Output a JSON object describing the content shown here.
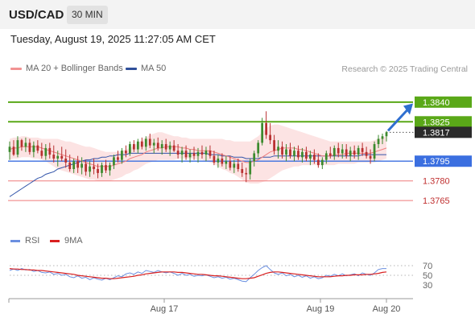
{
  "header": {
    "symbol": "USD/CAD",
    "timeframe": "30 MIN"
  },
  "timestamp": "Tuesday, August 19, 2025 11:27:05 AM CET",
  "legend": {
    "ma20_label": "MA 20 + Bollinger Bands",
    "ma50_label": "MA 50"
  },
  "credit": "Research © 2025 Trading Central",
  "rsi_legend": {
    "rsi_label": "RSI",
    "ma9_label": "9MA"
  },
  "colors": {
    "bull": "#3c8a2e",
    "bear": "#b83030",
    "ma20": "#ef7f7f",
    "ma50": "#3355aa",
    "band": "#fbdada",
    "resistance": "#5aa818",
    "support": "#3b6fe0",
    "support_low": "#ef7a7a",
    "rsi": "#6b8fe0",
    "rsi_ma": "#d92020",
    "arrow": "#2f6fd0"
  },
  "chart_data": [
    {
      "type": "candlestick",
      "title": "USD/CAD",
      "timeframe": "30 MIN",
      "x_tick_labels": [
        "Aug 17",
        "Aug 19",
        "Aug 20"
      ],
      "ylim": [
        1.3751,
        1.3854
      ],
      "candles": [
        [
          1.3802,
          1.381,
          1.3796,
          1.3806
        ],
        [
          1.3806,
          1.3811,
          1.3799,
          1.38
        ],
        [
          1.38,
          1.3814,
          1.3798,
          1.3811
        ],
        [
          1.3811,
          1.3812,
          1.3803,
          1.3806
        ],
        [
          1.3806,
          1.3813,
          1.3802,
          1.3809
        ],
        [
          1.3809,
          1.3812,
          1.38,
          1.3802
        ],
        [
          1.3802,
          1.381,
          1.3798,
          1.3807
        ],
        [
          1.3807,
          1.3811,
          1.3801,
          1.3803
        ],
        [
          1.3803,
          1.3809,
          1.3797,
          1.3799
        ],
        [
          1.3799,
          1.3808,
          1.3796,
          1.3805
        ],
        [
          1.3805,
          1.3809,
          1.3797,
          1.38
        ],
        [
          1.38,
          1.3807,
          1.3794,
          1.3797
        ],
        [
          1.3797,
          1.3803,
          1.3791,
          1.3799
        ],
        [
          1.3799,
          1.3806,
          1.3795,
          1.3797
        ],
        [
          1.3797,
          1.3804,
          1.379,
          1.3794
        ],
        [
          1.3794,
          1.38,
          1.3787,
          1.3789
        ],
        [
          1.3789,
          1.3797,
          1.3786,
          1.3795
        ],
        [
          1.3795,
          1.3799,
          1.3786,
          1.379
        ],
        [
          1.379,
          1.3798,
          1.3785,
          1.3793
        ],
        [
          1.3793,
          1.3796,
          1.3784,
          1.3787
        ],
        [
          1.3787,
          1.3795,
          1.3783,
          1.3791
        ],
        [
          1.3791,
          1.3797,
          1.3785,
          1.3789
        ],
        [
          1.3789,
          1.3793,
          1.3782,
          1.3786
        ],
        [
          1.3786,
          1.3794,
          1.3783,
          1.3792
        ],
        [
          1.3792,
          1.3796,
          1.3786,
          1.3788
        ],
        [
          1.3788,
          1.3794,
          1.3784,
          1.3792
        ],
        [
          1.3792,
          1.38,
          1.3789,
          1.3798
        ],
        [
          1.3798,
          1.3803,
          1.3794,
          1.3796
        ],
        [
          1.3796,
          1.3805,
          1.3793,
          1.3803
        ],
        [
          1.3803,
          1.3807,
          1.3798,
          1.3801
        ],
        [
          1.3801,
          1.381,
          1.3799,
          1.3808
        ],
        [
          1.3808,
          1.3811,
          1.3802,
          1.3804
        ],
        [
          1.3804,
          1.3812,
          1.3801,
          1.381
        ],
        [
          1.381,
          1.3813,
          1.3804,
          1.3806
        ],
        [
          1.3806,
          1.3814,
          1.3803,
          1.3812
        ],
        [
          1.3812,
          1.3816,
          1.3805,
          1.3807
        ],
        [
          1.3807,
          1.3812,
          1.3801,
          1.3809
        ],
        [
          1.3809,
          1.3813,
          1.3803,
          1.3805
        ],
        [
          1.3805,
          1.3811,
          1.38,
          1.3808
        ],
        [
          1.3808,
          1.3812,
          1.3802,
          1.3804
        ],
        [
          1.3804,
          1.381,
          1.3799,
          1.3807
        ],
        [
          1.3807,
          1.3811,
          1.3802,
          1.3803
        ],
        [
          1.3803,
          1.3808,
          1.3797,
          1.38
        ],
        [
          1.38,
          1.3806,
          1.3794,
          1.3803
        ],
        [
          1.3803,
          1.3807,
          1.3796,
          1.3798
        ],
        [
          1.3798,
          1.3804,
          1.3794,
          1.3801
        ],
        [
          1.3801,
          1.3806,
          1.3796,
          1.3799
        ],
        [
          1.3799,
          1.3805,
          1.3794,
          1.3802
        ],
        [
          1.3802,
          1.3807,
          1.3797,
          1.38
        ],
        [
          1.38,
          1.3806,
          1.3795,
          1.3803
        ],
        [
          1.3803,
          1.3807,
          1.3797,
          1.3799
        ],
        [
          1.3799,
          1.3803,
          1.3792,
          1.3794
        ],
        [
          1.3794,
          1.38,
          1.379,
          1.3797
        ],
        [
          1.3797,
          1.3801,
          1.3791,
          1.3793
        ],
        [
          1.3793,
          1.3799,
          1.3789,
          1.3795
        ],
        [
          1.3795,
          1.3799,
          1.3788,
          1.379
        ],
        [
          1.379,
          1.3796,
          1.3786,
          1.3793
        ],
        [
          1.3793,
          1.3797,
          1.3787,
          1.3789
        ],
        [
          1.3789,
          1.3794,
          1.3783,
          1.3786
        ],
        [
          1.3786,
          1.379,
          1.3779,
          1.3785
        ],
        [
          1.3785,
          1.3797,
          1.3781,
          1.3795
        ],
        [
          1.3795,
          1.3803,
          1.3791,
          1.3801
        ],
        [
          1.3801,
          1.3811,
          1.3798,
          1.3809
        ],
        [
          1.3809,
          1.3828,
          1.3807,
          1.3824
        ],
        [
          1.3824,
          1.3833,
          1.3812,
          1.3815
        ],
        [
          1.3815,
          1.3824,
          1.3808,
          1.3811
        ],
        [
          1.3811,
          1.3815,
          1.38,
          1.3803
        ],
        [
          1.3803,
          1.3811,
          1.3797,
          1.3806
        ],
        [
          1.3806,
          1.381,
          1.3797,
          1.38
        ],
        [
          1.38,
          1.3808,
          1.3795,
          1.3804
        ],
        [
          1.3804,
          1.3809,
          1.3797,
          1.3799
        ],
        [
          1.3799,
          1.3806,
          1.3795,
          1.3803
        ],
        [
          1.3803,
          1.3807,
          1.3796,
          1.3798
        ],
        [
          1.3798,
          1.3805,
          1.3794,
          1.3802
        ],
        [
          1.3802,
          1.3806,
          1.3795,
          1.3797
        ],
        [
          1.3797,
          1.3803,
          1.3792,
          1.38
        ],
        [
          1.38,
          1.3804,
          1.3793,
          1.3796
        ],
        [
          1.3796,
          1.3801,
          1.379,
          1.3792
        ],
        [
          1.3792,
          1.3798,
          1.3789,
          1.3796
        ],
        [
          1.3796,
          1.3803,
          1.3793,
          1.3801
        ],
        [
          1.3801,
          1.3806,
          1.3797,
          1.3799
        ],
        [
          1.3799,
          1.3807,
          1.3796,
          1.3805
        ],
        [
          1.3805,
          1.3809,
          1.3798,
          1.3801
        ],
        [
          1.3801,
          1.3808,
          1.3797,
          1.3804
        ],
        [
          1.3804,
          1.3808,
          1.3797,
          1.3799
        ],
        [
          1.3799,
          1.3806,
          1.3795,
          1.3803
        ],
        [
          1.3803,
          1.3807,
          1.3797,
          1.38
        ],
        [
          1.38,
          1.3807,
          1.3796,
          1.3805
        ],
        [
          1.3805,
          1.3809,
          1.3799,
          1.3802
        ],
        [
          1.3802,
          1.3806,
          1.3797,
          1.3799
        ],
        [
          1.3799,
          1.3804,
          1.3793,
          1.3797
        ],
        [
          1.3797,
          1.381,
          1.3795,
          1.3808
        ],
        [
          1.3808,
          1.3815,
          1.3805,
          1.3812
        ],
        [
          1.3812,
          1.3816,
          1.3808,
          1.3814
        ],
        [
          1.3814,
          1.3818,
          1.381,
          1.3817
        ]
      ],
      "ma20": [
        1.3804,
        1.3805,
        1.3805,
        1.3806,
        1.3806,
        1.3806,
        1.3806,
        1.3806,
        1.3805,
        1.3804,
        1.3803,
        1.3802,
        1.3801,
        1.38,
        1.3799,
        1.3798,
        1.3797,
        1.3796,
        1.3795,
        1.3794,
        1.3793,
        1.3792,
        1.3791,
        1.3791,
        1.3791,
        1.3791,
        1.3792,
        1.3793,
        1.3794,
        1.3795,
        1.3797,
        1.3798,
        1.3799,
        1.38,
        1.3802,
        1.3803,
        1.3804,
        1.3805,
        1.3805,
        1.3806,
        1.3806,
        1.3806,
        1.3806,
        1.3805,
        1.3805,
        1.3804,
        1.3804,
        1.3803,
        1.3803,
        1.3803,
        1.3803,
        1.3802,
        1.3801,
        1.38,
        1.3799,
        1.3798,
        1.3797,
        1.3796,
        1.3795,
        1.3794,
        1.3794,
        1.3795,
        1.3796,
        1.3798,
        1.38,
        1.3802,
        1.3803,
        1.3804,
        1.3805,
        1.3805,
        1.3805,
        1.3805,
        1.3804,
        1.3804,
        1.3803,
        1.3802,
        1.3801,
        1.38,
        1.3799,
        1.3799,
        1.3799,
        1.38,
        1.38,
        1.38,
        1.3801,
        1.3801,
        1.3801,
        1.3801,
        1.3801,
        1.3801,
        1.3801,
        1.3802,
        1.3803,
        1.3804,
        1.3805
      ],
      "bb_upper": [
        1.3812,
        1.3813,
        1.3813,
        1.3814,
        1.3814,
        1.3813,
        1.3813,
        1.3813,
        1.3812,
        1.3812,
        1.3812,
        1.3812,
        1.3812,
        1.3811,
        1.381,
        1.381,
        1.3809,
        1.3808,
        1.3807,
        1.3806,
        1.3806,
        1.3805,
        1.3804,
        1.3803,
        1.3802,
        1.3802,
        1.3802,
        1.3802,
        1.3803,
        1.3804,
        1.3805,
        1.3807,
        1.3809,
        1.3811,
        1.3813,
        1.3815,
        1.3816,
        1.3817,
        1.3817,
        1.3816,
        1.3815,
        1.3814,
        1.3814,
        1.3813,
        1.3813,
        1.3812,
        1.3812,
        1.3812,
        1.3812,
        1.3812,
        1.3812,
        1.3812,
        1.3812,
        1.3812,
        1.3811,
        1.3811,
        1.381,
        1.381,
        1.381,
        1.381,
        1.381,
        1.3812,
        1.3814,
        1.3817,
        1.382,
        1.3822,
        1.3823,
        1.3823,
        1.3822,
        1.3821,
        1.382,
        1.3819,
        1.3818,
        1.3817,
        1.3816,
        1.3815,
        1.3814,
        1.3813,
        1.3812,
        1.3811,
        1.381,
        1.381,
        1.381,
        1.381,
        1.381,
        1.381,
        1.381,
        1.381,
        1.381,
        1.381,
        1.381,
        1.3811,
        1.3812,
        1.3813,
        1.3814
      ],
      "bb_lower": [
        1.3796,
        1.3797,
        1.3797,
        1.3798,
        1.3798,
        1.3798,
        1.3797,
        1.3797,
        1.3796,
        1.3795,
        1.3793,
        1.3791,
        1.3789,
        1.3788,
        1.3787,
        1.3786,
        1.3785,
        1.3784,
        1.3783,
        1.3782,
        1.3781,
        1.3781,
        1.378,
        1.378,
        1.378,
        1.378,
        1.3781,
        1.3782,
        1.3783,
        1.3785,
        1.3786,
        1.3788,
        1.3789,
        1.3791,
        1.3793,
        1.3794,
        1.3795,
        1.3796,
        1.3796,
        1.3796,
        1.3796,
        1.3796,
        1.3797,
        1.3797,
        1.3797,
        1.3797,
        1.3797,
        1.3796,
        1.3796,
        1.3795,
        1.3794,
        1.3793,
        1.3791,
        1.3789,
        1.3788,
        1.3786,
        1.3785,
        1.3783,
        1.3781,
        1.3779,
        1.3778,
        1.3778,
        1.3778,
        1.3779,
        1.378,
        1.3782,
        1.3784,
        1.3786,
        1.3788,
        1.3789,
        1.379,
        1.3791,
        1.3791,
        1.3792,
        1.3792,
        1.3792,
        1.3792,
        1.3792,
        1.3792,
        1.3792,
        1.3792,
        1.3792,
        1.3793,
        1.3793,
        1.3793,
        1.3793,
        1.3793,
        1.3794,
        1.3794,
        1.3794,
        1.3794,
        1.3794,
        1.3795,
        1.3796,
        1.3797
      ],
      "ma50": [
        1.3768,
        1.377,
        1.3772,
        1.3774,
        1.3776,
        1.3778,
        1.378,
        1.3782,
        1.3783,
        1.3785,
        1.3786,
        1.3787,
        1.3789,
        1.379,
        1.3791,
        1.3792,
        1.3793,
        1.3794,
        1.3795,
        1.3796,
        1.3796,
        1.3797,
        1.3797,
        1.3798,
        1.3798,
        1.3799,
        1.3799,
        1.38,
        1.38,
        1.38,
        1.3801,
        1.3801,
        1.3801,
        1.3801,
        1.3801,
        1.3801,
        1.3801,
        1.3801,
        1.3801,
        1.3801,
        1.3801,
        1.3801,
        1.3801,
        1.3801,
        1.3801,
        1.3801,
        1.3801,
        1.3801,
        1.3801,
        1.3801,
        1.38,
        1.38,
        1.38,
        1.3799,
        1.3799,
        1.3799,
        1.3798,
        1.3798,
        1.3798,
        1.3797,
        1.3797,
        1.3797,
        1.3797,
        1.3798,
        1.3798,
        1.3798,
        1.3799,
        1.3799,
        1.3799,
        1.3799,
        1.3799,
        1.3799,
        1.3799,
        1.3799,
        1.3799,
        1.3799,
        1.3799,
        1.3799,
        1.3799,
        1.3799,
        1.3799,
        1.3799,
        1.3799,
        1.3799,
        1.3799,
        1.3799,
        1.3799,
        1.3799,
        1.38,
        1.38,
        1.38,
        1.38,
        1.38,
        1.38,
        1.38
      ],
      "levels": [
        {
          "value": 1.384,
          "label": "1.3840",
          "kind": "resistance"
        },
        {
          "value": 1.3825,
          "label": "1.3825",
          "kind": "resistance"
        },
        {
          "value": 1.3817,
          "label": "1.3817",
          "kind": "last"
        },
        {
          "value": 1.3795,
          "label": "1.3795",
          "kind": "support"
        },
        {
          "value": 1.378,
          "label": "1.3780",
          "kind": "support_low"
        },
        {
          "value": 1.3765,
          "label": "1.3765",
          "kind": "support_low"
        }
      ],
      "forecast_arrow": {
        "from": 1.3817,
        "to": 1.3839,
        "direction": "up"
      }
    },
    {
      "type": "line",
      "title": "RSI",
      "series": [
        {
          "name": "RSI",
          "values": [
            60,
            63,
            60,
            64,
            61,
            62,
            58,
            60,
            56,
            55,
            57,
            52,
            54,
            50,
            52,
            47,
            45,
            49,
            44,
            46,
            41,
            45,
            42,
            40,
            44,
            41,
            45,
            49,
            47,
            53,
            55,
            52,
            57,
            54,
            60,
            58,
            56,
            60,
            57,
            55,
            57,
            54,
            50,
            54,
            50,
            52,
            48,
            50,
            49,
            51,
            48,
            45,
            47,
            44,
            46,
            42,
            44,
            41,
            38,
            37,
            45,
            52,
            60,
            66,
            70,
            62,
            55,
            52,
            55,
            49,
            52,
            47,
            50,
            46,
            49,
            44,
            47,
            43,
            45,
            50,
            48,
            52,
            49,
            53,
            49,
            51,
            53,
            49,
            55,
            52,
            50,
            55,
            62,
            64,
            64
          ]
        },
        {
          "name": "9MA",
          "values": [
            64,
            63,
            63,
            62,
            62,
            61,
            61,
            60,
            60,
            59,
            58,
            57,
            56,
            55,
            54,
            53,
            52,
            50,
            49,
            48,
            47,
            46,
            45,
            44,
            44,
            43,
            43,
            44,
            45,
            46,
            47,
            48,
            50,
            51,
            53,
            54,
            55,
            56,
            57,
            57,
            57,
            57,
            56,
            56,
            55,
            54,
            53,
            52,
            52,
            51,
            50,
            49,
            49,
            48,
            47,
            46,
            45,
            44,
            43,
            43,
            44,
            45,
            48,
            51,
            54,
            56,
            57,
            57,
            56,
            55,
            54,
            53,
            52,
            51,
            50,
            49,
            48,
            47,
            47,
            47,
            47,
            48,
            49,
            49,
            50,
            50,
            51,
            51,
            51,
            52,
            52,
            53,
            54,
            56,
            57
          ]
        }
      ],
      "y_ticks": [
        "70",
        "50",
        "30"
      ],
      "ylim": [
        0,
        100
      ]
    }
  ]
}
